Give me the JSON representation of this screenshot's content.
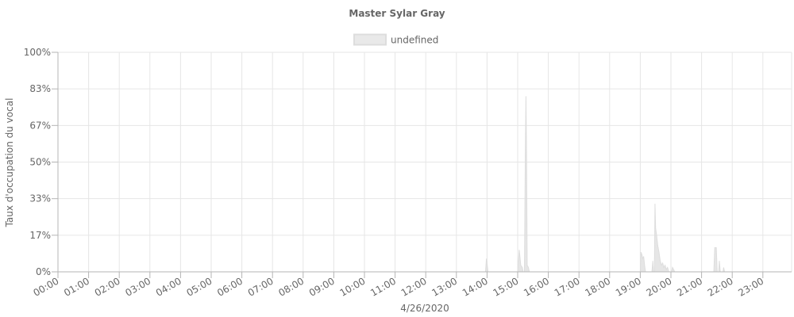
{
  "chart_data": {
    "type": "area",
    "title": "Master Sylar Gray",
    "xlabel": "4/26/2020",
    "ylabel": "Taux d'occupation du vocal",
    "legend": {
      "label": "undefined",
      "placement": "top-center"
    },
    "x_tick_labels": [
      "00:00",
      "01:00",
      "02:00",
      "03:00",
      "04:00",
      "05:00",
      "06:00",
      "07:00",
      "08:00",
      "09:00",
      "10:00",
      "11:00",
      "12:00",
      "13:00",
      "14:00",
      "15:00",
      "16:00",
      "17:00",
      "18:00",
      "19:00",
      "20:00",
      "21:00",
      "22:00",
      "23:00"
    ],
    "y_tick_labels": [
      "100%",
      "83%",
      "67%",
      "50%",
      "33%",
      "17%",
      "0%"
    ],
    "y_tick_values": [
      100,
      83.33,
      66.67,
      50,
      33.33,
      16.67,
      0
    ],
    "xlim_hours": [
      0,
      24
    ],
    "ylim": [
      0,
      100
    ],
    "grid": true,
    "series": [
      {
        "color": "#dddddd",
        "points": [
          [
            13.95,
            0
          ],
          [
            13.98,
            6
          ],
          [
            14.0,
            4
          ],
          [
            14.03,
            0
          ],
          [
            15.0,
            0
          ],
          [
            15.05,
            10
          ],
          [
            15.08,
            6
          ],
          [
            15.1,
            3
          ],
          [
            15.15,
            2
          ],
          [
            15.18,
            0
          ],
          [
            15.22,
            0
          ],
          [
            15.25,
            55
          ],
          [
            15.27,
            80
          ],
          [
            15.29,
            52
          ],
          [
            15.31,
            3
          ],
          [
            15.35,
            2
          ],
          [
            15.38,
            0
          ],
          [
            19.0,
            0
          ],
          [
            19.02,
            9
          ],
          [
            19.05,
            8
          ],
          [
            19.08,
            6
          ],
          [
            19.11,
            7
          ],
          [
            19.14,
            3
          ],
          [
            19.17,
            0
          ],
          [
            19.38,
            0
          ],
          [
            19.41,
            5
          ],
          [
            19.43,
            0
          ],
          [
            19.46,
            0
          ],
          [
            19.48,
            31
          ],
          [
            19.5,
            20
          ],
          [
            19.53,
            17
          ],
          [
            19.57,
            12
          ],
          [
            19.61,
            9
          ],
          [
            19.65,
            5
          ],
          [
            19.69,
            3
          ],
          [
            19.73,
            4
          ],
          [
            19.77,
            2
          ],
          [
            19.81,
            3
          ],
          [
            19.85,
            1
          ],
          [
            19.89,
            2
          ],
          [
            19.93,
            0
          ],
          [
            20.02,
            0
          ],
          [
            20.05,
            2
          ],
          [
            20.09,
            1
          ],
          [
            20.12,
            0
          ],
          [
            21.4,
            0
          ],
          [
            21.43,
            11
          ],
          [
            21.48,
            11
          ],
          [
            21.51,
            0
          ],
          [
            21.56,
            0
          ],
          [
            21.58,
            5
          ],
          [
            21.61,
            0
          ],
          [
            21.7,
            0
          ],
          [
            21.72,
            2
          ],
          [
            21.75,
            0
          ]
        ]
      }
    ]
  }
}
